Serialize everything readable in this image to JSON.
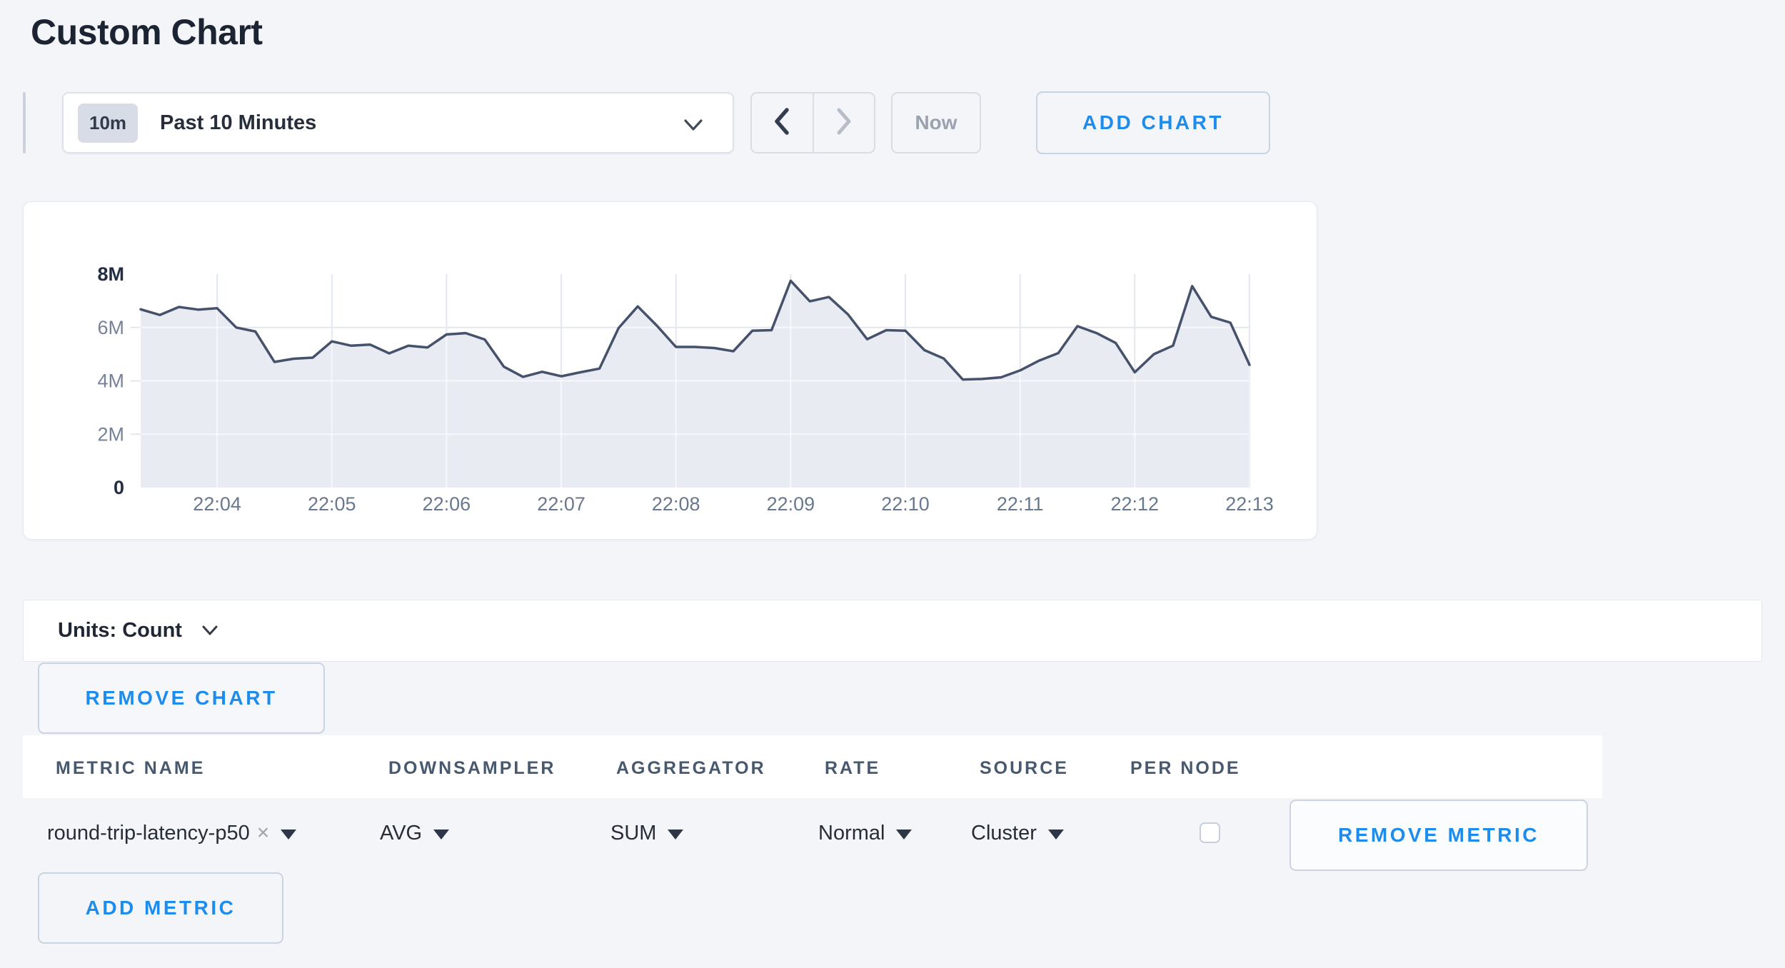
{
  "page": {
    "title": "Custom Chart"
  },
  "colors": {
    "accent_blue": "#1d8cec",
    "line": "#46526b",
    "fill": "#e9ebf2",
    "grid": "#e3e7ef",
    "axis_muted": "#76829a",
    "axis_bold": "#232e45",
    "x_label": "#68788f"
  },
  "toolbar": {
    "time_range": {
      "badge": "10m",
      "label": "Past 10 Minutes"
    },
    "back_button": "previous-time-window",
    "forward_button": "next-time-window",
    "now_label": "Now",
    "add_chart_label": "ADD CHART"
  },
  "chart_data": {
    "type": "area",
    "title": "",
    "xlabel": "",
    "ylabel": "Count",
    "ylim": [
      0,
      8000000
    ],
    "unit_suffix": "M",
    "x_start_time": "22:03:20",
    "interval_seconds": 10,
    "x_tick_labels": [
      "22:04",
      "22:05",
      "22:06",
      "22:07",
      "22:08",
      "22:09",
      "22:10",
      "22:11",
      "22:12",
      "22:13"
    ],
    "x_tick_indices": [
      4,
      10,
      16,
      22,
      28,
      34,
      40,
      46,
      52,
      58
    ],
    "y_ticks": [
      {
        "label": "8M",
        "value": 8,
        "bold": true
      },
      {
        "label": "6M",
        "value": 6,
        "bold": false
      },
      {
        "label": "4M",
        "value": 4,
        "bold": false
      },
      {
        "label": "2M",
        "value": 2,
        "bold": false
      },
      {
        "label": "0",
        "value": 0,
        "bold": true
      }
    ],
    "grid": true,
    "legend": "none",
    "values_millions": [
      6.68,
      6.47,
      6.77,
      6.67,
      6.72,
      6.0,
      5.85,
      4.71,
      4.83,
      4.87,
      5.48,
      5.32,
      5.36,
      5.03,
      5.32,
      5.25,
      5.74,
      5.79,
      5.55,
      4.53,
      4.15,
      4.34,
      4.17,
      4.32,
      4.46,
      5.98,
      6.79,
      6.07,
      5.27,
      5.27,
      5.23,
      5.11,
      5.88,
      5.9,
      7.75,
      6.98,
      7.14,
      6.49,
      5.56,
      5.9,
      5.88,
      5.15,
      4.84,
      4.05,
      4.07,
      4.13,
      4.39,
      4.76,
      5.04,
      6.05,
      5.79,
      5.42,
      4.32,
      5.0,
      5.32,
      7.55,
      6.4,
      6.18,
      4.6
    ]
  },
  "units_bar": {
    "label": "Units: Count"
  },
  "chart_actions": {
    "remove_chart_label": "REMOVE CHART"
  },
  "metrics_table": {
    "headers": [
      "METRIC NAME",
      "DOWNSAMPLER",
      "AGGREGATOR",
      "RATE",
      "SOURCE",
      "PER NODE"
    ],
    "rows": [
      {
        "metric_name": "round-trip-latency-p50",
        "remove_tag_icon": "x",
        "downsampler": "AVG",
        "aggregator": "SUM",
        "rate": "Normal",
        "source": "Cluster",
        "per_node_checked": false,
        "remove_label": "REMOVE METRIC"
      }
    ],
    "add_metric_label": "ADD METRIC"
  }
}
